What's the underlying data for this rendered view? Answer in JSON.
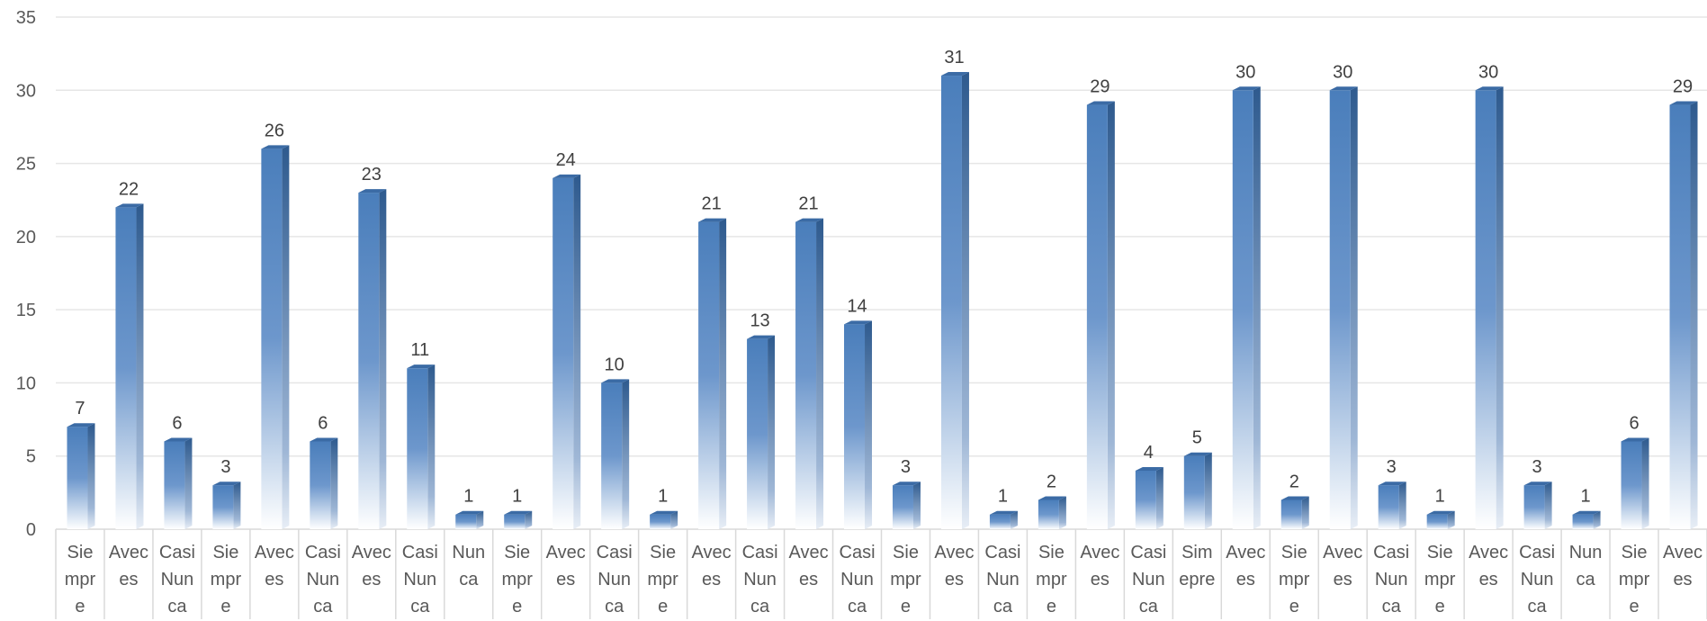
{
  "chart_data": {
    "type": "bar",
    "categories": [
      "Siempre",
      "Aveces",
      "CasiNunca",
      "Siempre",
      "Aveces",
      "CasiNunca",
      "Aveces",
      "CasiNunca",
      "Nunca",
      "Siempre",
      "Aveces",
      "CasiNunca",
      "Siempre",
      "Aveces",
      "CasiNunca",
      "Aveces",
      "CasiNunca",
      "Siempre",
      "Aveces",
      "CasiNunca",
      "Siempre",
      "Aveces",
      "CasiNunca",
      "Simepre",
      "Aveces",
      "Siempre",
      "Aveces",
      "CasiNunca",
      "Siempre",
      "Aveces",
      "CasiNunca",
      "Nunca",
      "Siempre",
      "Aveces"
    ],
    "category_lines": [
      [
        "Sie",
        "mpr",
        "e"
      ],
      [
        "Avec",
        "es"
      ],
      [
        "Casi",
        "Nun",
        "ca"
      ],
      [
        "Sie",
        "mpr",
        "e"
      ],
      [
        "Avec",
        "es"
      ],
      [
        "Casi",
        "Nun",
        "ca"
      ],
      [
        "Avec",
        "es"
      ],
      [
        "Casi",
        "Nun",
        "ca"
      ],
      [
        "Nun",
        "ca"
      ],
      [
        "Sie",
        "mpr",
        "e"
      ],
      [
        "Avec",
        "es"
      ],
      [
        "Casi",
        "Nun",
        "ca"
      ],
      [
        "Sie",
        "mpr",
        "e"
      ],
      [
        "Avec",
        "es"
      ],
      [
        "Casi",
        "Nun",
        "ca"
      ],
      [
        "Avec",
        "es"
      ],
      [
        "Casi",
        "Nun",
        "ca"
      ],
      [
        "Sie",
        "mpr",
        "e"
      ],
      [
        "Avec",
        "es"
      ],
      [
        "Casi",
        "Nun",
        "ca"
      ],
      [
        "Sie",
        "mpr",
        "e"
      ],
      [
        "Avec",
        "es"
      ],
      [
        "Casi",
        "Nun",
        "ca"
      ],
      [
        "Sim",
        "epre"
      ],
      [
        "Avec",
        "es"
      ],
      [
        "Sie",
        "mpr",
        "e"
      ],
      [
        "Avec",
        "es"
      ],
      [
        "Casi",
        "Nun",
        "ca"
      ],
      [
        "Sie",
        "mpr",
        "e"
      ],
      [
        "Avec",
        "es"
      ],
      [
        "Casi",
        "Nun",
        "ca"
      ],
      [
        "Nun",
        "ca"
      ],
      [
        "Sie",
        "mpr",
        "e"
      ],
      [
        "Avec",
        "es"
      ]
    ],
    "values": [
      7,
      22,
      6,
      3,
      26,
      6,
      23,
      11,
      1,
      1,
      24,
      10,
      1,
      21,
      13,
      21,
      14,
      3,
      31,
      1,
      2,
      29,
      4,
      5,
      30,
      2,
      30,
      3,
      1,
      30,
      3,
      1,
      6,
      29
    ],
    "ylim": [
      0,
      35
    ],
    "yticks": [
      0,
      5,
      10,
      15,
      20,
      25,
      30,
      35
    ],
    "grid": true,
    "bar_color": "#4a7ebb",
    "bar_dark": "#2e5a8e",
    "bar_top": "#3b6ba5",
    "title": "",
    "xlabel": "",
    "ylabel": ""
  }
}
